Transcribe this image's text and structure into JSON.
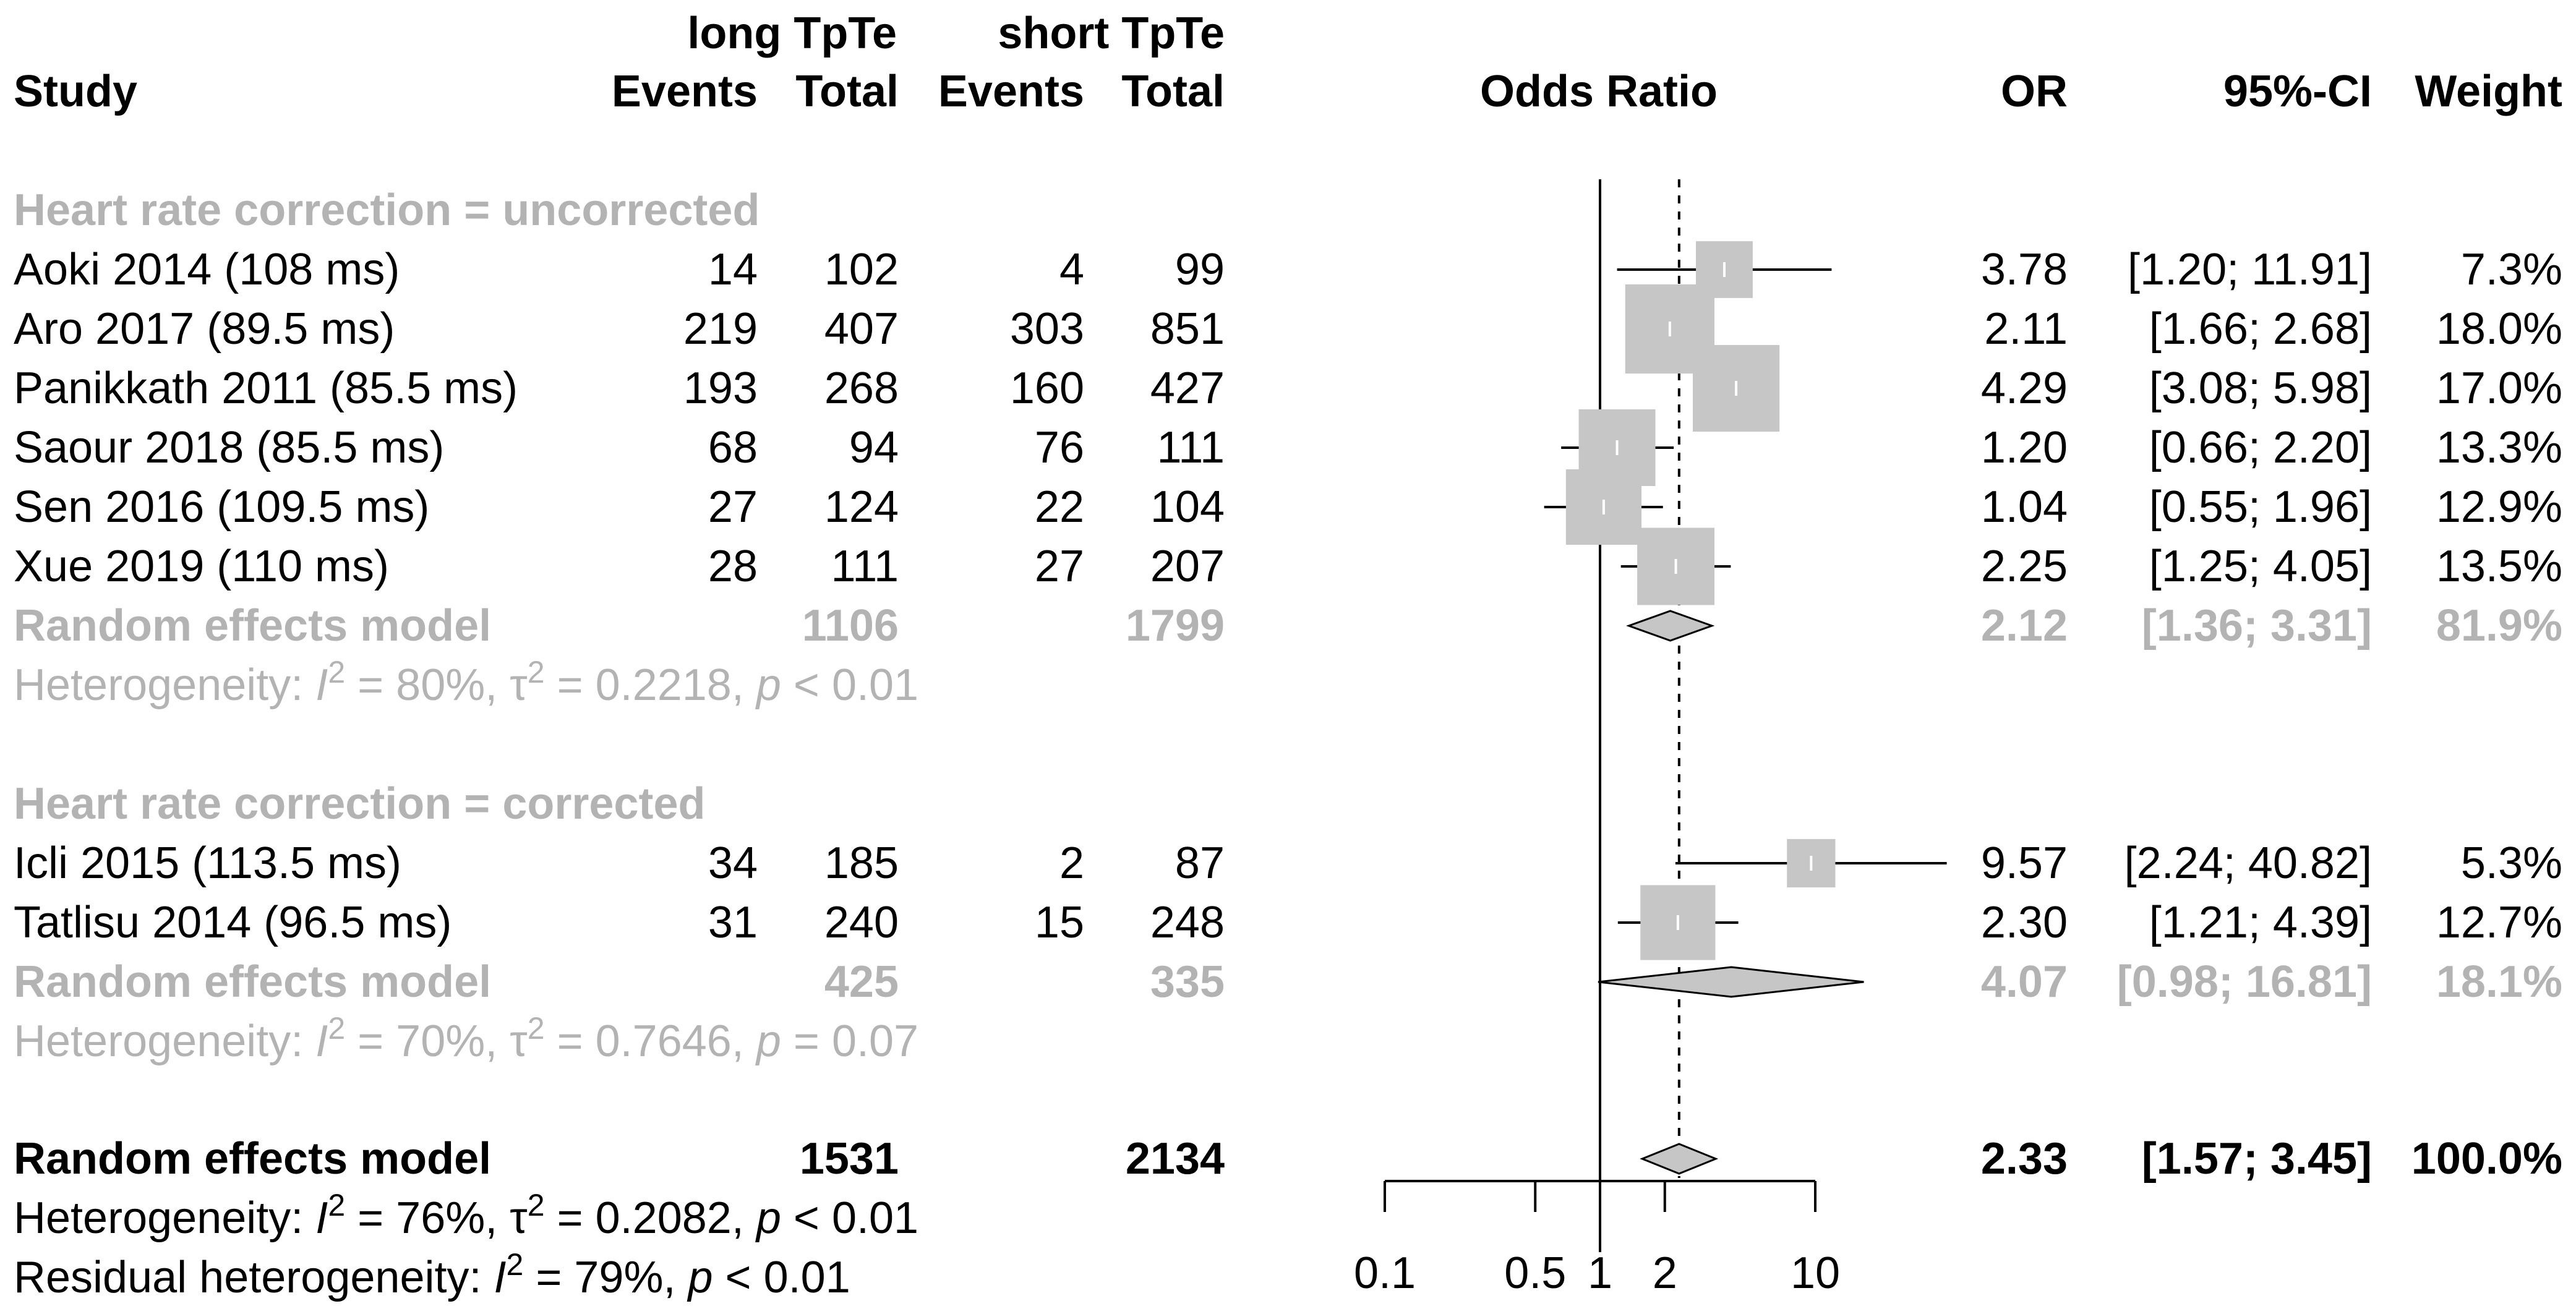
{
  "colors": {
    "text": "#000000",
    "subgroup": "#b3b3b3",
    "box": "#c6c6c6",
    "diamond": "#c6c6c6",
    "line": "#000000"
  },
  "chart_data": {
    "type": "forest",
    "scale": "log",
    "null_value": 1,
    "overall_effect": 2.33,
    "ticks": [
      0.1,
      0.5,
      1,
      2,
      10
    ],
    "headers": {
      "study": "Study",
      "group1": "long TpTe",
      "group2": "short TpTe",
      "events": "Events",
      "total": "Total",
      "odds_ratio": "Odds Ratio",
      "or": "OR",
      "ci": "95%-CI",
      "weight": "Weight"
    },
    "subgroups": [
      {
        "title": "Heart rate correction = uncorrected",
        "studies": [
          {
            "study": "Aoki 2014 (108 ms)",
            "e1": "14",
            "n1": "102",
            "e2": "4",
            "n2": "99",
            "or": 3.78,
            "lo": 1.2,
            "hi": 11.91,
            "or_text": "3.78",
            "ci_text": "[1.20; 11.91]",
            "weight": 7.3,
            "weight_text": "7.3%"
          },
          {
            "study": "Aro 2017 (89.5 ms)",
            "e1": "219",
            "n1": "407",
            "e2": "303",
            "n2": "851",
            "or": 2.11,
            "lo": 1.66,
            "hi": 2.68,
            "or_text": "2.11",
            "ci_text": "[1.66;  2.68]",
            "weight": 18.0,
            "weight_text": "18.0%"
          },
          {
            "study": "Panikkath 2011 (85.5 ms)",
            "e1": "193",
            "n1": "268",
            "e2": "160",
            "n2": "427",
            "or": 4.29,
            "lo": 3.08,
            "hi": 5.98,
            "or_text": "4.29",
            "ci_text": "[3.08;  5.98]",
            "weight": 17.0,
            "weight_text": "17.0%"
          },
          {
            "study": "Saour 2018 (85.5 ms)",
            "e1": "68",
            "n1": "94",
            "e2": "76",
            "n2": "111",
            "or": 1.2,
            "lo": 0.66,
            "hi": 2.2,
            "or_text": "1.20",
            "ci_text": "[0.66;  2.20]",
            "weight": 13.3,
            "weight_text": "13.3%"
          },
          {
            "study": "Sen 2016 (109.5 ms)",
            "e1": "27",
            "n1": "124",
            "e2": "22",
            "n2": "104",
            "or": 1.04,
            "lo": 0.55,
            "hi": 1.96,
            "or_text": "1.04",
            "ci_text": "[0.55;  1.96]",
            "weight": 12.9,
            "weight_text": "12.9%"
          },
          {
            "study": "Xue 2019 (110 ms)",
            "e1": "28",
            "n1": "111",
            "e2": "27",
            "n2": "207",
            "or": 2.25,
            "lo": 1.25,
            "hi": 4.05,
            "or_text": "2.25",
            "ci_text": "[1.25;  4.05]",
            "weight": 13.5,
            "weight_text": "13.5%"
          }
        ],
        "model": {
          "label": "Random effects model",
          "n1": "1106",
          "n2": "1799",
          "or": 2.12,
          "lo": 1.36,
          "hi": 3.31,
          "or_text": "2.12",
          "ci_text": "[1.36;  3.31]",
          "weight_text": "81.9%"
        },
        "heterogeneity": {
          "prefix": "Heterogeneity: ",
          "i2": "80%",
          "tau2": "0.2218",
          "p": "< 0.01"
        }
      },
      {
        "title": "Heart rate correction = corrected",
        "studies": [
          {
            "study": "Icli 2015 (113.5 ms)",
            "e1": "34",
            "n1": "185",
            "e2": "2",
            "n2": "87",
            "or": 9.57,
            "lo": 2.24,
            "hi": 40.82,
            "or_text": "9.57",
            "ci_text": "[2.24; 40.82]",
            "weight": 5.3,
            "weight_text": "5.3%"
          },
          {
            "study": "Tatlisu 2014 (96.5 ms)",
            "e1": "31",
            "n1": "240",
            "e2": "15",
            "n2": "248",
            "or": 2.3,
            "lo": 1.21,
            "hi": 4.39,
            "or_text": "2.30",
            "ci_text": "[1.21;  4.39]",
            "weight": 12.7,
            "weight_text": "12.7%"
          }
        ],
        "model": {
          "label": "Random effects model",
          "n1": "425",
          "n2": "335",
          "or": 4.07,
          "lo": 0.98,
          "hi": 16.81,
          "or_text": "4.07",
          "ci_text": "[0.98; 16.81]",
          "weight_text": "18.1%"
        },
        "heterogeneity": {
          "prefix": "Heterogeneity: ",
          "i2": "70%",
          "tau2": "0.7646",
          "p": "= 0.07"
        }
      }
    ],
    "overall": {
      "model": {
        "label": "Random effects model",
        "n1": "1531",
        "n2": "2134",
        "or": 2.33,
        "lo": 1.57,
        "hi": 3.45,
        "or_text": "2.33",
        "ci_text": "[1.57;  3.45]",
        "weight_text": "100.0%"
      },
      "heterogeneity": {
        "prefix": "Heterogeneity: ",
        "i2": "76%",
        "tau2": "0.2082",
        "p": "< 0.01"
      },
      "residual": {
        "prefix": "Residual heterogeneity: ",
        "i2": "79%",
        "p": "< 0.01"
      }
    }
  }
}
